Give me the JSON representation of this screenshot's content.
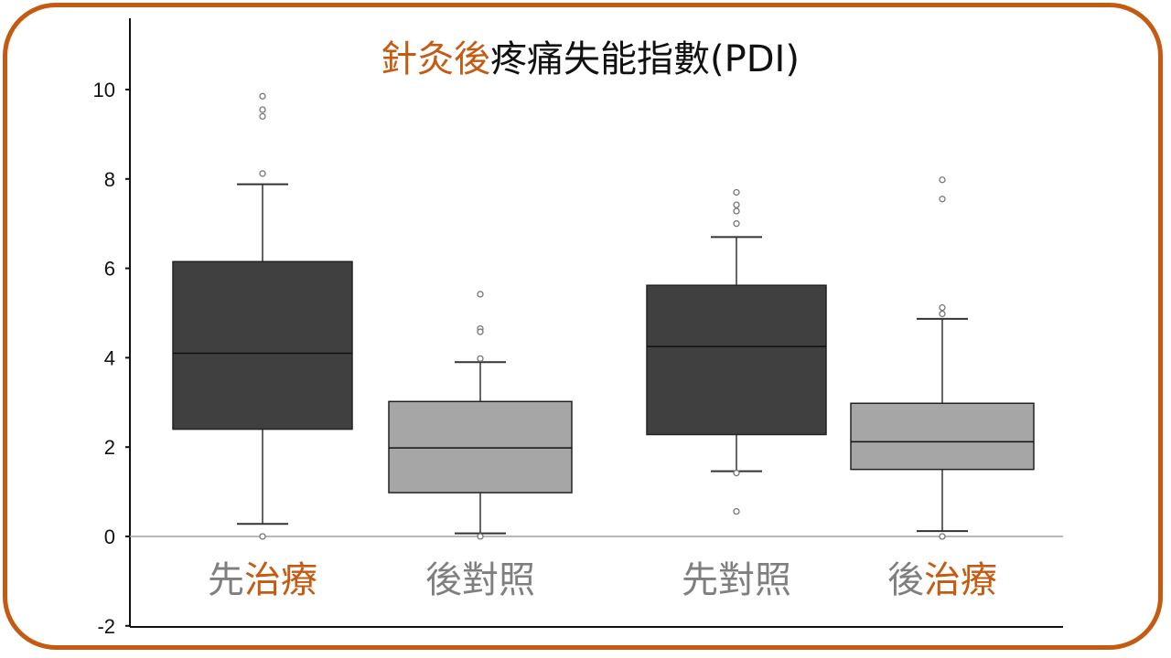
{
  "chart_data": {
    "type": "boxplot",
    "title": {
      "accent_part": "針灸後",
      "rest_part": "疼痛失能指數(PDI)"
    },
    "xlabel": "",
    "ylabel": "",
    "ylim": [
      -2,
      11.5
    ],
    "yticks": [
      "10",
      "8",
      "6",
      "4",
      "2",
      "0",
      "-2"
    ],
    "ytick_values": [
      10,
      8,
      6,
      4,
      2,
      0,
      -2
    ],
    "grid": false,
    "categories": [
      {
        "gray": "先",
        "accent": "治療",
        "accent_first": false
      },
      {
        "gray": "後對照",
        "accent": "",
        "accent_first": false
      },
      {
        "gray": "先對照",
        "accent": "",
        "accent_first": false
      },
      {
        "gray": "後",
        "accent": "治療",
        "accent_first": false
      }
    ],
    "boxes": [
      {
        "q1": 2.4,
        "median": 4.1,
        "q3": 6.15,
        "whisker_low": 0.28,
        "whisker_high": 7.88,
        "outliers": [
          9.85,
          9.55,
          9.4,
          8.12,
          0.0
        ],
        "fill": "#404040"
      },
      {
        "q1": 0.98,
        "median": 1.98,
        "q3": 3.02,
        "whisker_low": 0.07,
        "whisker_high": 3.9,
        "outliers": [
          5.42,
          4.65,
          4.58,
          3.98,
          0.0
        ],
        "fill": "#a6a6a6"
      },
      {
        "q1": 2.28,
        "median": 4.25,
        "q3": 5.62,
        "whisker_low": 1.46,
        "whisker_high": 6.7,
        "outliers": [
          7.7,
          7.42,
          7.28,
          7.0,
          1.42,
          0.56
        ],
        "fill": "#404040"
      },
      {
        "q1": 1.5,
        "median": 2.12,
        "q3": 2.98,
        "whisker_low": 0.12,
        "whisker_high": 4.87,
        "outliers": [
          7.98,
          7.55,
          5.12,
          4.98,
          0.0
        ],
        "fill": "#a6a6a6"
      }
    ],
    "colors": {
      "accent": "#c55a11",
      "category_gray": "#7f7f7f",
      "dark_box": "#404040",
      "light_box": "#a6a6a6"
    }
  }
}
